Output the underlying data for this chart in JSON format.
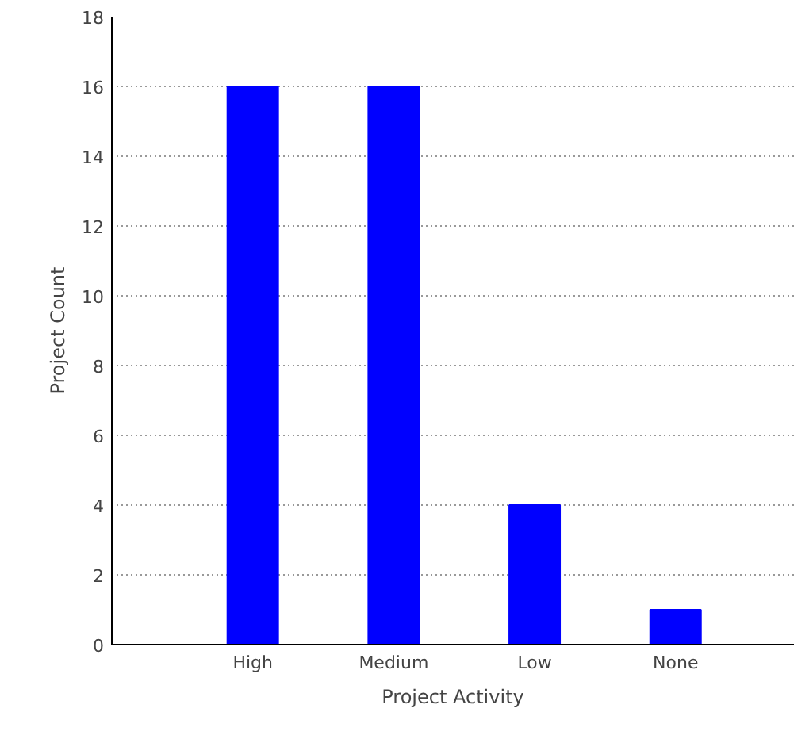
{
  "chart_data": {
    "type": "bar",
    "xlabel": "Project Activity",
    "ylabel": "Project Count",
    "categories": [
      "High",
      "Medium",
      "Low",
      "None"
    ],
    "values": [
      16,
      16,
      4,
      1
    ],
    "color": "#0000ff",
    "ylim": [
      0,
      18
    ],
    "yticks": [
      0,
      2,
      4,
      6,
      8,
      10,
      12,
      14,
      16,
      18
    ],
    "grid": "y"
  }
}
